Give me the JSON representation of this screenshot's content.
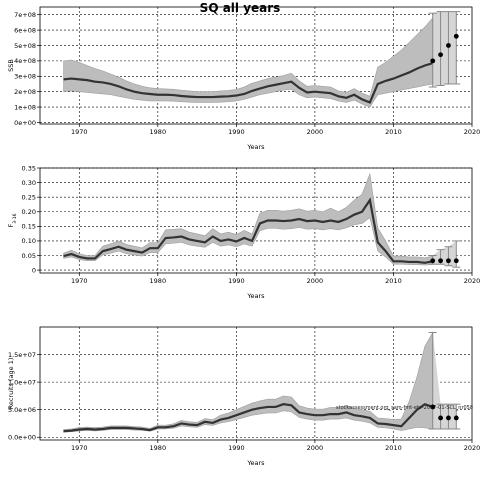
{
  "title": "SQ all years",
  "watermark": "stockassessment.org_sam-fmt-ehr-2017-01-SCL_nr058",
  "chart_data": [
    {
      "type": "line",
      "ylabel": "SSB",
      "xlabel": "Years",
      "xlim": [
        1965,
        2020
      ],
      "ylim": [
        -10000000,
        750000000
      ],
      "xticks": [
        1970,
        1980,
        1990,
        2000,
        2010,
        2020
      ],
      "xtick_labels": [
        "1970",
        "1980",
        "1990",
        "2000",
        "2010",
        "2020"
      ],
      "yticks": [
        0,
        100000000,
        200000000,
        300000000,
        400000000,
        500000000,
        600000000,
        700000000
      ],
      "ytick_labels": [
        "0e+00",
        "1e+08",
        "2e+08",
        "3e+08",
        "4e+08",
        "5e+08",
        "6e+08",
        "7e+08"
      ],
      "grid": true,
      "series": [
        {
          "x": [
            1968,
            1969,
            1970,
            1971,
            1972,
            1973,
            1974,
            1975,
            1976,
            1977,
            1978,
            1979,
            1980,
            1981,
            1982,
            1983,
            1984,
            1985,
            1986,
            1987,
            1988,
            1989,
            1990,
            1991,
            1992,
            1993,
            1994,
            1995,
            1996,
            1997,
            1998,
            1999,
            2000,
            2001,
            2002,
            2003,
            2004,
            2005,
            2006,
            2007,
            2008,
            2009,
            2010,
            2011,
            2012,
            2013,
            2014,
            2015
          ],
          "y": [
            280000000,
            285000000,
            280000000,
            275000000,
            265000000,
            260000000,
            250000000,
            235000000,
            215000000,
            200000000,
            190000000,
            185000000,
            180000000,
            180000000,
            178000000,
            172000000,
            168000000,
            165000000,
            165000000,
            165000000,
            168000000,
            170000000,
            175000000,
            185000000,
            205000000,
            220000000,
            235000000,
            245000000,
            255000000,
            265000000,
            225000000,
            195000000,
            200000000,
            195000000,
            190000000,
            170000000,
            160000000,
            180000000,
            150000000,
            130000000,
            250000000,
            270000000,
            285000000,
            305000000,
            325000000,
            350000000,
            370000000,
            385000000
          ],
          "lower": [
            200000000,
            205000000,
            200000000,
            195000000,
            190000000,
            185000000,
            180000000,
            170000000,
            160000000,
            150000000,
            145000000,
            140000000,
            140000000,
            140000000,
            138000000,
            135000000,
            132000000,
            130000000,
            130000000,
            130000000,
            132000000,
            135000000,
            140000000,
            150000000,
            165000000,
            180000000,
            190000000,
            200000000,
            210000000,
            215000000,
            180000000,
            160000000,
            165000000,
            160000000,
            155000000,
            140000000,
            130000000,
            145000000,
            120000000,
            100000000,
            180000000,
            190000000,
            200000000,
            210000000,
            220000000,
            230000000,
            240000000,
            250000000
          ],
          "upper": [
            400000000,
            405000000,
            390000000,
            370000000,
            350000000,
            335000000,
            315000000,
            295000000,
            270000000,
            250000000,
            235000000,
            225000000,
            220000000,
            218000000,
            215000000,
            210000000,
            205000000,
            200000000,
            200000000,
            200000000,
            205000000,
            208000000,
            215000000,
            230000000,
            255000000,
            270000000,
            285000000,
            295000000,
            305000000,
            320000000,
            270000000,
            235000000,
            240000000,
            235000000,
            230000000,
            205000000,
            195000000,
            220000000,
            190000000,
            170000000,
            360000000,
            390000000,
            430000000,
            470000000,
            520000000,
            570000000,
            620000000,
            680000000
          ]
        }
      ],
      "forecast": {
        "x": [
          2015,
          2016,
          2017,
          2018
        ],
        "y": [
          400000000,
          440000000,
          500000000,
          560000000
        ],
        "lower": [
          230000000,
          240000000,
          250000000,
          250000000
        ],
        "upper": [
          710000000,
          720000000,
          720000000,
          720000000
        ]
      }
    },
    {
      "type": "line",
      "ylabel": "F",
      "ylabel_sub": "3-16",
      "xlabel": "Years",
      "xlim": [
        1965,
        2020
      ],
      "ylim": [
        -0.01,
        0.35
      ],
      "xticks": [
        1970,
        1980,
        1990,
        2000,
        2010,
        2020
      ],
      "xtick_labels": [
        "1970",
        "1980",
        "1990",
        "2000",
        "2010",
        "2020"
      ],
      "yticks": [
        0,
        0.05,
        0.1,
        0.15,
        0.2,
        0.25,
        0.3,
        0.35
      ],
      "ytick_labels": [
        "0",
        "0.05",
        "0.10",
        "0.15",
        "0.20",
        "0.25",
        "0.30",
        "0.35"
      ],
      "grid": true,
      "series": [
        {
          "x": [
            1968,
            1969,
            1970,
            1971,
            1972,
            1973,
            1974,
            1975,
            1976,
            1977,
            1978,
            1979,
            1980,
            1981,
            1982,
            1983,
            1984,
            1985,
            1986,
            1987,
            1988,
            1989,
            1990,
            1991,
            1992,
            1993,
            1994,
            1995,
            1996,
            1997,
            1998,
            1999,
            2000,
            2001,
            2002,
            2003,
            2004,
            2005,
            2006,
            2007,
            2008,
            2009,
            2010,
            2011,
            2012,
            2013,
            2014,
            2015
          ],
          "y": [
            0.048,
            0.055,
            0.045,
            0.04,
            0.04,
            0.065,
            0.072,
            0.08,
            0.07,
            0.065,
            0.06,
            0.075,
            0.075,
            0.11,
            0.112,
            0.115,
            0.105,
            0.1,
            0.095,
            0.115,
            0.1,
            0.105,
            0.098,
            0.11,
            0.1,
            0.16,
            0.17,
            0.17,
            0.168,
            0.17,
            0.175,
            0.168,
            0.17,
            0.165,
            0.17,
            0.165,
            0.175,
            0.19,
            0.2,
            0.24,
            0.095,
            0.065,
            0.03,
            0.03,
            0.028,
            0.028,
            0.025,
            0.03
          ],
          "lower": [
            0.04,
            0.045,
            0.036,
            0.032,
            0.032,
            0.052,
            0.058,
            0.065,
            0.056,
            0.052,
            0.048,
            0.06,
            0.06,
            0.09,
            0.092,
            0.095,
            0.086,
            0.082,
            0.078,
            0.095,
            0.082,
            0.086,
            0.08,
            0.09,
            0.082,
            0.135,
            0.143,
            0.143,
            0.14,
            0.142,
            0.146,
            0.14,
            0.142,
            0.138,
            0.142,
            0.138,
            0.145,
            0.155,
            0.16,
            0.18,
            0.065,
            0.045,
            0.02,
            0.02,
            0.019,
            0.019,
            0.017,
            0.02
          ],
          "upper": [
            0.058,
            0.068,
            0.056,
            0.05,
            0.05,
            0.082,
            0.09,
            0.1,
            0.088,
            0.082,
            0.076,
            0.094,
            0.094,
            0.138,
            0.14,
            0.142,
            0.13,
            0.124,
            0.118,
            0.142,
            0.124,
            0.13,
            0.122,
            0.136,
            0.124,
            0.195,
            0.205,
            0.205,
            0.202,
            0.205,
            0.21,
            0.202,
            0.205,
            0.2,
            0.212,
            0.2,
            0.215,
            0.24,
            0.26,
            0.33,
            0.145,
            0.1,
            0.048,
            0.048,
            0.045,
            0.045,
            0.042,
            0.048
          ]
        }
      ],
      "forecast": {
        "x": [
          2015,
          2016,
          2017,
          2018
        ],
        "y": [
          0.032,
          0.032,
          0.032,
          0.032
        ],
        "lower": [
          0.02,
          0.02,
          0.015,
          0.01
        ],
        "upper": [
          0.05,
          0.07,
          0.08,
          0.1
        ]
      }
    },
    {
      "type": "line",
      "ylabel": "Recruits (age 1)",
      "xlabel": "Years",
      "xlim": [
        1965,
        2020
      ],
      "ylim": [
        -500000,
        20000000
      ],
      "xticks": [
        1970,
        1980,
        1990,
        2000,
        2010,
        2020
      ],
      "xtick_labels": [
        "1970",
        "1980",
        "1990",
        "2000",
        "2010",
        "2020"
      ],
      "yticks": [
        0,
        5000000,
        10000000,
        15000000
      ],
      "ytick_labels": [
        "0.0e+00",
        "5.0e+06",
        "1.0e+07",
        "1.5e+07"
      ],
      "grid": true,
      "series": [
        {
          "x": [
            1968,
            1969,
            1970,
            1971,
            1972,
            1973,
            1974,
            1975,
            1976,
            1977,
            1978,
            1979,
            1980,
            1981,
            1982,
            1983,
            1984,
            1985,
            1986,
            1987,
            1988,
            1989,
            1990,
            1991,
            1992,
            1993,
            1994,
            1995,
            1996,
            1997,
            1998,
            1999,
            2000,
            2001,
            2002,
            2003,
            2004,
            2005,
            2006,
            2007,
            2008,
            2009,
            2010,
            2011,
            2012,
            2013,
            2014,
            2015
          ],
          "y": [
            1100000,
            1200000,
            1400000,
            1500000,
            1400000,
            1500000,
            1700000,
            1700000,
            1700000,
            1600000,
            1500000,
            1300000,
            1800000,
            1800000,
            2000000,
            2500000,
            2300000,
            2200000,
            2800000,
            2600000,
            3200000,
            3500000,
            4000000,
            4500000,
            5000000,
            5300000,
            5500000,
            5500000,
            6000000,
            5800000,
            4500000,
            4200000,
            4000000,
            4000000,
            4200000,
            4200000,
            4500000,
            4000000,
            3800000,
            3500000,
            2500000,
            2400000,
            2200000,
            2000000,
            3500000,
            5000000,
            6000000,
            5500000
          ],
          "lower": [
            900000,
            1000000,
            1150000,
            1250000,
            1150000,
            1250000,
            1400000,
            1400000,
            1400000,
            1300000,
            1250000,
            1100000,
            1500000,
            1500000,
            1650000,
            2050000,
            1900000,
            1800000,
            2300000,
            2150000,
            2600000,
            2850000,
            3200000,
            3600000,
            4000000,
            4200000,
            4400000,
            4400000,
            4800000,
            4600000,
            3600000,
            3300000,
            3100000,
            3100000,
            3300000,
            3300000,
            3500000,
            3100000,
            2900000,
            2600000,
            1800000,
            1700000,
            1500000,
            1200000,
            1500000,
            1800000,
            1700000,
            1500000
          ],
          "upper": [
            1400000,
            1500000,
            1750000,
            1850000,
            1750000,
            1850000,
            2050000,
            2050000,
            2050000,
            1950000,
            1850000,
            1600000,
            2200000,
            2200000,
            2450000,
            3050000,
            2800000,
            2700000,
            3400000,
            3200000,
            4000000,
            4400000,
            5000000,
            5600000,
            6200000,
            6600000,
            6900000,
            6900000,
            7500000,
            7300000,
            5700000,
            5300000,
            5100000,
            5100000,
            5400000,
            5400000,
            5800000,
            5200000,
            5000000,
            4700000,
            3500000,
            3400000,
            3200000,
            3300000,
            6500000,
            11000000,
            16500000,
            19000000
          ]
        }
      ],
      "forecast": {
        "x": [
          2015,
          2016,
          2017,
          2018
        ],
        "y": [
          5500000,
          3500000,
          3500000,
          3500000
        ],
        "lower": [
          1500000,
          1500000,
          1500000,
          1500000
        ],
        "upper": [
          19000000,
          6000000,
          6000000,
          6000000
        ]
      }
    }
  ]
}
